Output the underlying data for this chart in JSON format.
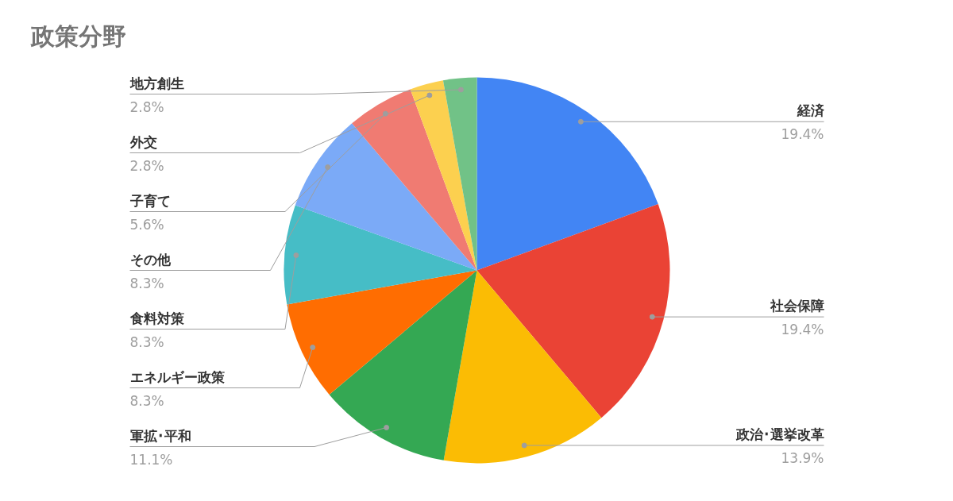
{
  "chart_data": {
    "type": "pie",
    "title": "政策分野",
    "categories": [
      "経済",
      "社会保障",
      "政治･選挙改革",
      "軍拡･平和",
      "エネルギー政策",
      "食料対策",
      "その他",
      "子育て",
      "外交",
      "地方創生"
    ],
    "values": [
      19.4,
      19.4,
      13.9,
      11.1,
      8.3,
      8.3,
      8.3,
      5.6,
      2.8,
      2.8
    ],
    "value_labels": [
      "19.4%",
      "19.4%",
      "13.9%",
      "11.1%",
      "8.3%",
      "8.3%",
      "8.3%",
      "5.6%",
      "2.8%",
      "2.8%"
    ],
    "colors": [
      "#4285f4",
      "#ea4335",
      "#fbbc04",
      "#34a853",
      "#ff6d01",
      "#46bdc6",
      "#7baaf7",
      "#f07b72",
      "#fcd04f",
      "#71c287"
    ]
  }
}
